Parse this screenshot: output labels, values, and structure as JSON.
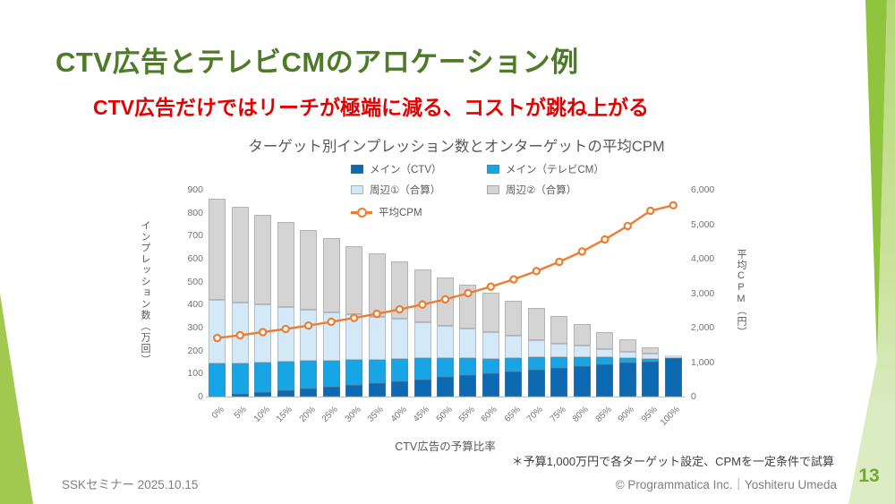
{
  "slide": {
    "title": "CTV広告とテレビCMのアロケーション例",
    "subtitle": "CTV広告だけではリーチが極端に減る、コストが跳ね上がる",
    "note": "＊予算1,000万円で各ターゲット設定、CPMを一定条件で試算",
    "footer_left": "SSKセミナー 2025.10.15",
    "footer_right": "© Programmatica Inc.｜Yoshiteru Umeda",
    "page_number": "13"
  },
  "colors": {
    "title_green": "#4e7b28",
    "subtitle_red": "#e60000",
    "axis_text": "#595959",
    "page_number_green": "#74a730",
    "decoration_green_dark": "#90c33e",
    "decoration_green_mid": "#a1c94f",
    "decoration_green_light": "#d9ebc0"
  },
  "chart_data": {
    "type": "combo_stacked_bar_line",
    "title": "ターゲット別インプレッション数とオンターゲットの平均CPM",
    "xlabel": "CTV広告の予算比率",
    "ylabel_left": "インプレッション数（万回）",
    "ylabel_right": "平均CPM（円）",
    "ylim_left": [
      0,
      900
    ],
    "ylim_right": [
      0,
      6000
    ],
    "yticks_left": [
      "0",
      "100",
      "200",
      "300",
      "400",
      "500",
      "600",
      "700",
      "800",
      "900"
    ],
    "yticks_right": [
      "0",
      "1,000",
      "2,000",
      "3,000",
      "4,000",
      "5,000",
      "6,000"
    ],
    "grid": false,
    "legend_position": "top",
    "categories": [
      "0%",
      "5%",
      "10%",
      "15%",
      "20%",
      "25%",
      "30%",
      "35%",
      "40%",
      "45%",
      "50%",
      "55%",
      "60%",
      "65%",
      "70%",
      "75%",
      "80%",
      "85%",
      "90%",
      "95%",
      "100%"
    ],
    "series": [
      {
        "name": "メイン（CTV）",
        "type": "bar",
        "axis": "left",
        "color": "#0e69b3",
        "values": [
          0,
          10,
          20,
          28,
          36,
          43,
          50,
          60,
          68,
          76,
          84,
          94,
          102,
          109,
          117,
          125,
          133,
          140,
          147,
          152,
          168
        ]
      },
      {
        "name": "メイン（テレビCM）",
        "type": "bar",
        "axis": "left",
        "color": "#18a5e5",
        "values": [
          145,
          136,
          130,
          125,
          119,
          114,
          109,
          101,
          95,
          90,
          83,
          74,
          62,
          58,
          53,
          47,
          40,
          30,
          20,
          10,
          0
        ]
      },
      {
        "name": "周辺①（合算）",
        "type": "bar",
        "axis": "left",
        "color": "#d3e9f8",
        "values": [
          277,
          265,
          250,
          238,
          223,
          210,
          198,
          187,
          175,
          159,
          142,
          129,
          116,
          97,
          77,
          59,
          49,
          36,
          28,
          27,
          10
        ]
      },
      {
        "name": "周辺②（合算）",
        "type": "bar",
        "axis": "left",
        "color": "#d4d4d4",
        "values": [
          438,
          414,
          390,
          367,
          346,
          323,
          299,
          274,
          250,
          229,
          211,
          189,
          172,
          154,
          137,
          119,
          94,
          76,
          53,
          25,
          2
        ]
      },
      {
        "name": "平均CPM",
        "type": "line",
        "axis": "right",
        "color": "#ed7d31",
        "values": [
          1700,
          1780,
          1870,
          1960,
          2060,
          2170,
          2280,
          2400,
          2530,
          2670,
          2820,
          3000,
          3190,
          3400,
          3640,
          3910,
          4210,
          4560,
          4950,
          5390,
          5550
        ]
      }
    ]
  }
}
